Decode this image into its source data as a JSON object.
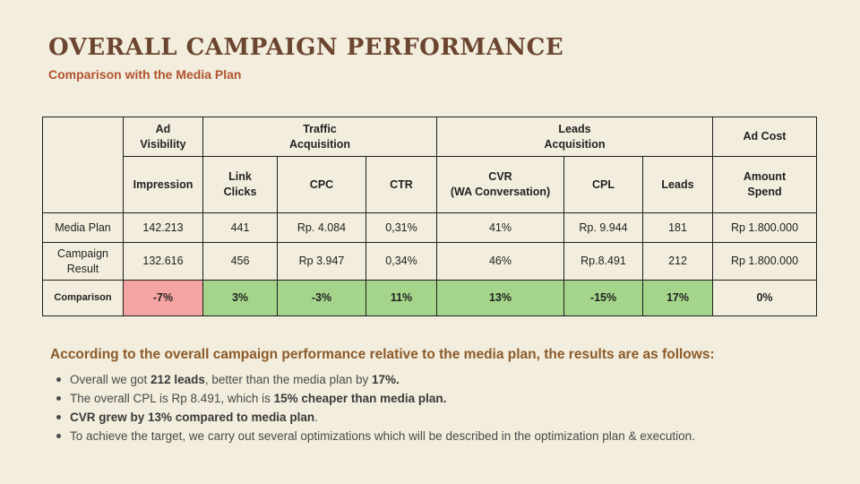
{
  "title": "OVERALL CAMPAIGN PERFORMANCE",
  "subtitle": "Comparison with the Media Plan",
  "table": {
    "groups": {
      "ad_visibility": "Ad\nVisibility",
      "traffic": "Traffic\nAcquisition",
      "leads": "Leads\nAcquisition",
      "ad_cost": "Ad Cost"
    },
    "columns": [
      "Impression",
      "Link\nClicks",
      "CPC",
      "CTR",
      "CVR\n(WA Conversation)",
      "CPL",
      "Leads",
      "Amount\nSpend"
    ],
    "rows": [
      {
        "label": "Media Plan",
        "values": [
          "142.213",
          "441",
          "Rp. 4.084",
          "0,31%",
          "41%",
          "Rp. 9.944",
          "181",
          "Rp 1.800.000"
        ]
      },
      {
        "label": "Campaign\nResult",
        "values": [
          "132.616",
          "456",
          "Rp 3.947",
          "0,34%",
          "46%",
          "Rp.8.491",
          "212",
          "Rp 1.800.000"
        ]
      },
      {
        "label": "Comparison",
        "values": [
          "-7%",
          "3%",
          "-3%",
          "11%",
          "13%",
          "-15%",
          "17%",
          "0%"
        ]
      }
    ],
    "colors": {
      "negative": "#f4a4a2",
      "positive": "#a4d58a"
    }
  },
  "conclusion": "According to the overall campaign performance relative to the media plan, the results are as follows:",
  "bullets": {
    "b1_a": "Overall we got ",
    "b1_b": "212 leads",
    "b1_c": ", better than the media plan by ",
    "b1_d": "17%.",
    "b2_a": "The overall CPL is Rp 8.491, which is ",
    "b2_b": "15% cheaper than media plan.",
    "b3_a": "CVR grew by 13% compared to media plan",
    "b3_b": ".",
    "b4": "To achieve the target, we carry out several optimizations which will be described in the optimization plan & execution."
  }
}
